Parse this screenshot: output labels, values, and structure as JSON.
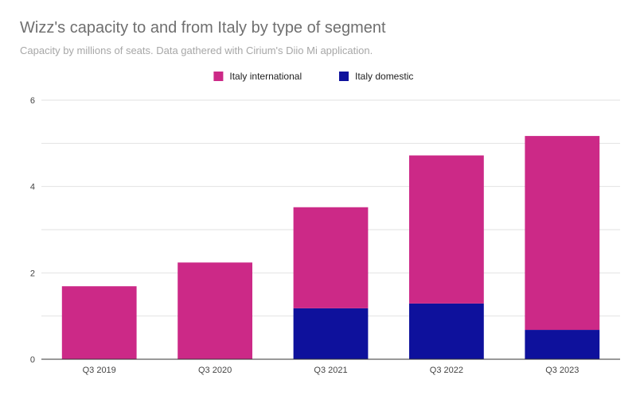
{
  "title": "Wizz's capacity to and from Italy by type of segment",
  "subtitle": "Capacity by millions of seats. Data gathered with Cirium's Diio Mi application.",
  "colors": {
    "Italy international": "#cc2987",
    "Italy domestic": "#0e119c",
    "grid": "#e2e2e2",
    "axis": "#333333"
  },
  "chart_data": {
    "type": "bar",
    "stacked": true,
    "categories": [
      "Q3 2019",
      "Q3 2020",
      "Q3 2021",
      "Q3 2022",
      "Q3 2023"
    ],
    "series": [
      {
        "name": "Italy domestic",
        "values": [
          0,
          0,
          1.18,
          1.29,
          0.68
        ]
      },
      {
        "name": "Italy international",
        "values": [
          1.69,
          2.24,
          2.34,
          3.43,
          4.49
        ]
      }
    ],
    "legend_order": [
      "Italy international",
      "Italy domestic"
    ],
    "legend_position": "top",
    "ylim": [
      0,
      6
    ],
    "yticks": [
      "0",
      "2",
      "4",
      "6"
    ],
    "grid": true
  }
}
